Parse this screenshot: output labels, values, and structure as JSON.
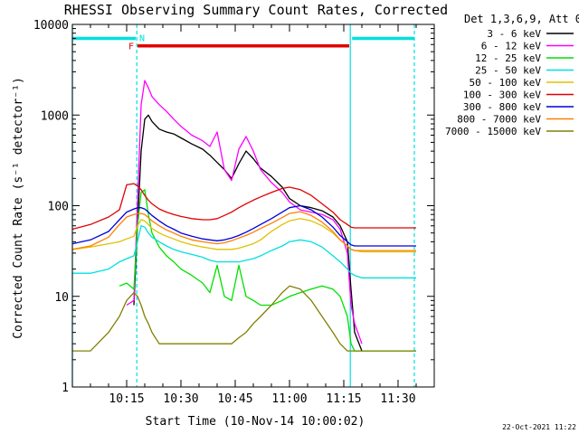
{
  "chart_data": {
    "type": "line",
    "title": "RHESSI Observing Summary Count Rates, Corrected",
    "ylabel": "Corrected Count Rate (s⁻¹ detector⁻¹)",
    "xlabel": "Start Time (10-Nov-14 10:00:02)",
    "y_scale": "log",
    "ylim": [
      1,
      10000
    ],
    "xlim_minutes": [
      0,
      100
    ],
    "x_ticks": [
      {
        "label": "10:15",
        "minute": 15
      },
      {
        "label": "10:30",
        "minute": 30
      },
      {
        "label": "10:45",
        "minute": 45
      },
      {
        "label": "11:00",
        "minute": 60
      },
      {
        "label": "11:15",
        "minute": 75
      },
      {
        "label": "11:30",
        "minute": 90
      }
    ],
    "y_ticks": [
      {
        "label": "1",
        "value": 1
      },
      {
        "label": "10",
        "value": 10
      },
      {
        "label": "100",
        "value": 100
      },
      {
        "label": "1000",
        "value": 1000
      },
      {
        "label": "10000",
        "value": 10000
      }
    ],
    "legend_title": "Det 1,3,6,9, Att 0",
    "legend_placement": "outside-right",
    "footer_date": "22-Oct-2021 11:22",
    "flags": {
      "night": {
        "label": "N",
        "color": "#00e0e0",
        "value": 7000,
        "segments": [
          [
            0,
            17.5
          ],
          [
            77.3,
            94.5
          ]
        ]
      },
      "flare": {
        "label": "F",
        "color": "#e00000",
        "value": 5800,
        "segments": [
          [
            18.0,
            76.5
          ]
        ]
      }
    },
    "vertical_lines": [
      {
        "minute": 0,
        "style": "solid",
        "color": "#00e0e0"
      },
      {
        "minute": 17.8,
        "style": "dashed",
        "color": "#00e0e0"
      },
      {
        "minute": 76.8,
        "style": "solid",
        "color": "#00e0e0"
      },
      {
        "minute": 94.5,
        "style": "dashed",
        "color": "#00e0e0"
      }
    ],
    "x": [
      0,
      5,
      10,
      13,
      15,
      17,
      18,
      19,
      20,
      21,
      22,
      24,
      26,
      28,
      30,
      33,
      36,
      38,
      40,
      42,
      44,
      46,
      48,
      50,
      52,
      55,
      58,
      60,
      63,
      66,
      69,
      72,
      74,
      76,
      77,
      78,
      80,
      85,
      90,
      95
    ],
    "series": [
      {
        "name": "3 - 6 keV",
        "color": "#000000",
        "values": [
          null,
          null,
          null,
          null,
          null,
          8,
          60,
          400,
          900,
          1000,
          850,
          700,
          650,
          620,
          560,
          480,
          420,
          360,
          300,
          250,
          200,
          290,
          400,
          330,
          260,
          210,
          160,
          120,
          100,
          95,
          88,
          75,
          60,
          40,
          12,
          4,
          2.5,
          null,
          null,
          null
        ]
      },
      {
        "name": "6 - 12 keV",
        "color": "#ff00ff",
        "values": [
          null,
          null,
          null,
          null,
          8,
          9,
          110,
          1300,
          2400,
          2000,
          1600,
          1300,
          1100,
          900,
          750,
          600,
          520,
          450,
          650,
          250,
          190,
          420,
          580,
          400,
          250,
          180,
          140,
          110,
          90,
          85,
          80,
          70,
          55,
          30,
          8,
          5,
          3,
          null,
          null,
          null
        ]
      },
      {
        "name": "12 - 25 keV",
        "color": "#00e000",
        "values": [
          null,
          null,
          null,
          13,
          14,
          12,
          60,
          140,
          150,
          80,
          50,
          35,
          28,
          24,
          20,
          17,
          14,
          11,
          22,
          10,
          9,
          22,
          10,
          9,
          8,
          8,
          9,
          10,
          11,
          12,
          13,
          12,
          10,
          6,
          3,
          2.5,
          2.5,
          2.5,
          2.5,
          2.5
        ]
      },
      {
        "name": "25 - 50 keV",
        "color": "#00e0e0",
        "values": [
          18,
          18,
          20,
          24,
          26,
          28,
          40,
          60,
          58,
          50,
          45,
          40,
          36,
          33,
          31,
          29,
          27,
          25,
          24,
          24,
          24,
          24,
          25,
          26,
          28,
          32,
          36,
          40,
          42,
          40,
          35,
          28,
          24,
          20,
          18,
          17,
          16,
          16,
          16,
          16
        ]
      },
      {
        "name": "50 - 100 keV",
        "color": "#e0c000",
        "values": [
          33,
          35,
          38,
          40,
          43,
          46,
          60,
          70,
          68,
          62,
          56,
          50,
          46,
          43,
          40,
          37,
          35,
          34,
          33,
          33,
          33,
          34,
          36,
          38,
          42,
          52,
          62,
          68,
          72,
          68,
          60,
          50,
          42,
          36,
          33,
          32,
          31,
          31,
          31,
          31
        ]
      },
      {
        "name": "100 - 300 keV",
        "color": "#e00000",
        "values": [
          55,
          62,
          75,
          90,
          170,
          175,
          165,
          150,
          130,
          115,
          105,
          92,
          85,
          80,
          76,
          72,
          70,
          70,
          72,
          78,
          85,
          95,
          105,
          115,
          125,
          140,
          155,
          160,
          150,
          130,
          105,
          85,
          70,
          62,
          58,
          57,
          57,
          57,
          57,
          57
        ]
      },
      {
        "name": "300 - 800 keV",
        "color": "#0000e0",
        "values": [
          38,
          42,
          52,
          70,
          85,
          92,
          95,
          95,
          92,
          85,
          78,
          68,
          60,
          55,
          50,
          46,
          43,
          42,
          41,
          42,
          44,
          47,
          51,
          56,
          62,
          72,
          85,
          95,
          100,
          90,
          75,
          58,
          47,
          40,
          37,
          36,
          36,
          36,
          36,
          36
        ]
      },
      {
        "name": "800 - 7000 keV",
        "color": "#ff8000",
        "values": [
          33,
          36,
          45,
          62,
          75,
          80,
          82,
          82,
          80,
          74,
          68,
          60,
          54,
          50,
          46,
          42,
          40,
          39,
          38,
          39,
          41,
          44,
          47,
          51,
          56,
          64,
          74,
          82,
          86,
          78,
          66,
          52,
          42,
          36,
          33,
          32,
          32,
          32,
          32,
          32
        ]
      },
      {
        "name": "7000 - 15000 keV",
        "color": "#808000",
        "values": [
          2.5,
          2.5,
          4,
          6,
          9,
          11,
          10,
          8,
          6,
          5,
          4,
          3,
          3,
          3,
          3,
          3,
          3,
          3,
          3,
          3,
          3,
          3.5,
          4,
          5,
          6,
          8,
          11,
          13,
          12,
          9,
          6,
          4,
          3,
          2.5,
          2.5,
          2.5,
          2.5,
          2.5,
          2.5,
          2.5
        ]
      }
    ]
  }
}
